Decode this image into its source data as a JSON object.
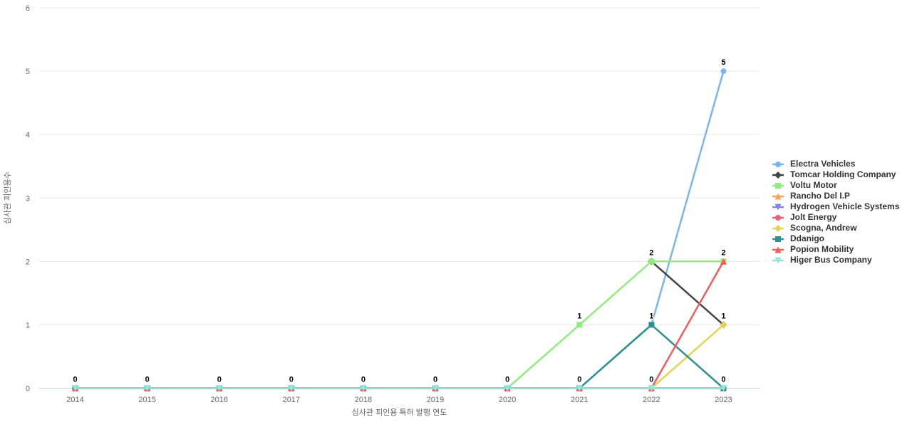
{
  "chart_data": {
    "type": "line",
    "title": "",
    "xlabel": "심사관 피인용 특허 발행 연도",
    "ylabel": "심사관 피인용수",
    "categories": [
      "2014",
      "2015",
      "2016",
      "2017",
      "2018",
      "2019",
      "2020",
      "2021",
      "2022",
      "2023"
    ],
    "ylim": [
      0,
      6
    ],
    "yticks": [
      0,
      1,
      2,
      3,
      4,
      5,
      6
    ],
    "grid": true,
    "legend_position": "right",
    "data_labels": true,
    "series": [
      {
        "name": "Electra Vehicles",
        "color": "#7cb5ec",
        "marker": "circle",
        "values": [
          0,
          0,
          0,
          0,
          0,
          0,
          0,
          0,
          1,
          5
        ]
      },
      {
        "name": "Tomcar Holding Company",
        "color": "#434348",
        "marker": "diamond",
        "values": [
          null,
          null,
          null,
          null,
          null,
          null,
          null,
          null,
          2,
          1
        ]
      },
      {
        "name": "Voltu Motor",
        "color": "#90ed7d",
        "marker": "square",
        "values": [
          0,
          0,
          0,
          0,
          0,
          0,
          0,
          1,
          2,
          2
        ]
      },
      {
        "name": "Rancho Del I.P",
        "color": "#f7a35c",
        "marker": "triangle",
        "values": [
          0,
          0,
          0,
          0,
          0,
          0,
          0,
          0,
          0,
          0
        ]
      },
      {
        "name": "Hydrogen Vehicle Systems",
        "color": "#8085e9",
        "marker": "triangle-down",
        "values": [
          0,
          0,
          0,
          0,
          0,
          0,
          0,
          0,
          0,
          0
        ]
      },
      {
        "name": "Jolt Energy",
        "color": "#f15c80",
        "marker": "circle",
        "values": [
          0,
          0,
          0,
          0,
          0,
          0,
          0,
          0,
          0,
          0
        ]
      },
      {
        "name": "Scogna, Andrew",
        "color": "#e4d354",
        "marker": "diamond",
        "values": [
          0,
          0,
          0,
          0,
          0,
          0,
          0,
          0,
          0,
          1
        ]
      },
      {
        "name": "Ddanigo",
        "color": "#2b908f",
        "marker": "square",
        "values": [
          0,
          0,
          0,
          0,
          0,
          0,
          0,
          0,
          1,
          0
        ]
      },
      {
        "name": "Popion Mobility",
        "color": "#f45b5b",
        "marker": "triangle",
        "values": [
          0,
          0,
          0,
          0,
          0,
          0,
          0,
          0,
          0,
          2
        ]
      },
      {
        "name": "Higer Bus Company",
        "color": "#91e8e1",
        "marker": "triangle-down",
        "values": [
          0,
          0,
          0,
          0,
          0,
          0,
          0,
          0,
          0,
          0
        ]
      }
    ],
    "colors": {
      "background": "#ffffff",
      "grid_line": "#e6e6e6",
      "x_axis_line": "#ccd6eb",
      "tick_label": "#666666",
      "axis_title": "#666666",
      "legend_text": "#333333",
      "data_label": "#000000"
    }
  }
}
